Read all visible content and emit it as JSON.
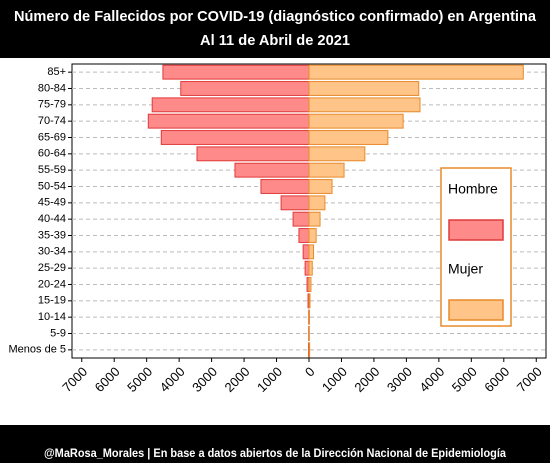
{
  "chart_data": {
    "type": "pyramid",
    "title": "Número de Fallecidos por COVID-19 (diagnóstico confirmado) en Argentina",
    "subtitle": "Al 11 de Abril de 2021",
    "caption": "@MaRosa_Morales | En base a datos abiertos de la Dirección Nacional de Epidemiología",
    "categories": [
      "85+",
      "80-84",
      "75-79",
      "70-74",
      "65-69",
      "60-64",
      "55-59",
      "50-54",
      "45-49",
      "40-44",
      "35-39",
      "30-34",
      "25-29",
      "20-24",
      "15-19",
      "10-14",
      "5-9",
      "Menos de 5"
    ],
    "series": [
      {
        "name": "Hombre",
        "color": "#ff8a8a",
        "edge": "#e03a3a",
        "values": [
          -4500,
          -3950,
          -4830,
          -4950,
          -4550,
          -3450,
          -2280,
          -1480,
          -860,
          -490,
          -310,
          -180,
          -120,
          -60,
          -30,
          -10,
          -10,
          -15
        ]
      },
      {
        "name": "Mujer",
        "color": "#ffc488",
        "edge": "#e88a2a",
        "values": [
          6600,
          3380,
          3420,
          2900,
          2430,
          1720,
          1080,
          710,
          490,
          340,
          220,
          140,
          100,
          60,
          30,
          15,
          10,
          20
        ]
      }
    ],
    "xlim": [
      -7300,
      7300
    ],
    "xticks": [
      {
        "value": -7000,
        "label": "7000"
      },
      {
        "value": -6000,
        "label": "6000"
      },
      {
        "value": -5000,
        "label": "5000"
      },
      {
        "value": -4000,
        "label": "4000"
      },
      {
        "value": -3000,
        "label": "3000"
      },
      {
        "value": -2000,
        "label": "2000"
      },
      {
        "value": -1000,
        "label": "1000"
      },
      0,
      1000,
      2000,
      3000,
      4000,
      5000,
      6000,
      7000
    ],
    "grid": true
  }
}
